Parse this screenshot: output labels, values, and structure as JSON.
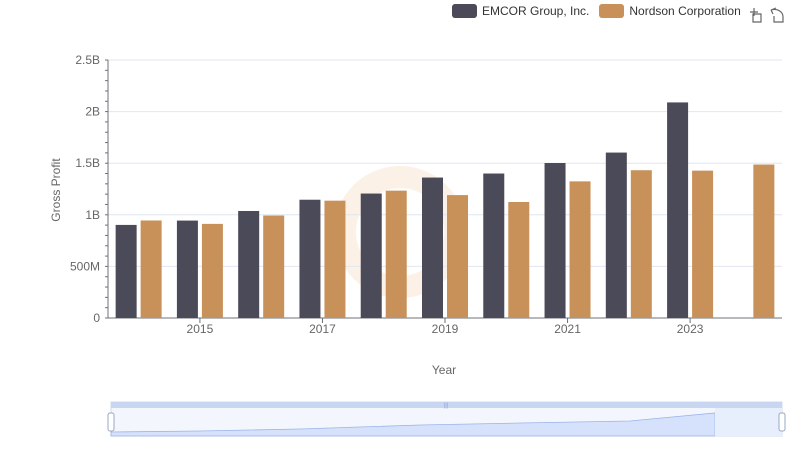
{
  "chart_data": {
    "type": "bar",
    "title": "",
    "xlabel": "Year",
    "ylabel": "Gross Profit",
    "x": [
      2014,
      2015,
      2016,
      2017,
      2018,
      2019,
      2020,
      2021,
      2022,
      2023,
      2024
    ],
    "x_tick_labels": [
      "2015",
      "2017",
      "2019",
      "2021",
      "2023"
    ],
    "y_tick_labels": [
      "0",
      "500M",
      "1B",
      "1.5B",
      "2B",
      "2.5B"
    ],
    "ylim": [
      0,
      2500000000
    ],
    "grid": true,
    "legend_position": "top-right",
    "series": [
      {
        "name": "EMCOR Group, Inc.",
        "color": "#4a4a58",
        "values": [
          902000000,
          944000000,
          1037000000,
          1146000000,
          1206000000,
          1361000000,
          1400000000,
          1502000000,
          1603000000,
          2089000000,
          null
        ]
      },
      {
        "name": "Nordson Corporation",
        "color": "#c8915a",
        "values": [
          945000000,
          912000000,
          993000000,
          1137000000,
          1234000000,
          1191000000,
          1124000000,
          1324000000,
          1432000000,
          1428000000,
          1487000000
        ]
      }
    ]
  },
  "toolbar": {
    "icons": [
      "zoom-icon",
      "restore-icon"
    ]
  },
  "datazoom": {
    "range_start": 0,
    "range_end": 1
  }
}
